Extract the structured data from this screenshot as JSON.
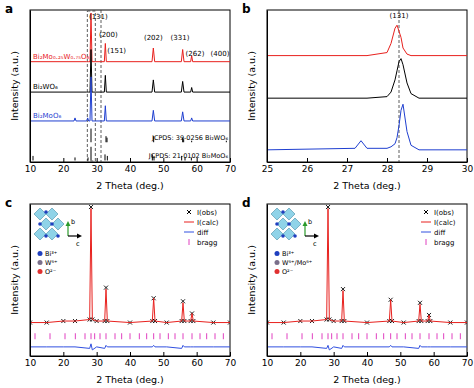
{
  "chart_data": [
    {
      "type": "line",
      "title": "a",
      "x_label": "2 Theta (deg.)",
      "y_label": "Intensity (a.u.)",
      "xlim": [
        10,
        70
      ],
      "xticks": [
        10,
        20,
        30,
        40,
        50,
        60,
        70
      ],
      "ylim": [
        0,
        100
      ],
      "tick_labels": "x",
      "highlight_x": [
        27.2,
        29.6
      ],
      "reference_lines": [
        31.3
      ],
      "x": [
        10,
        23.2,
        23.5,
        23.8,
        27.0,
        27.3,
        27.6,
        28.0,
        28.3,
        28.6,
        32.3,
        32.6,
        32.9,
        46.6,
        47.0,
        47.4,
        55.4,
        55.8,
        56.2,
        58.2,
        58.5,
        58.8,
        70
      ],
      "series": [
        {
          "name": "Bi₂Mo₀.₂₅W₀.₇₅O₆",
          "type": "line",
          "color": "#e8211e",
          "values": [
            66,
            66,
            66,
            66,
            66,
            66,
            66,
            66,
            98,
            66,
            66,
            78,
            66,
            66,
            75,
            66,
            66,
            74,
            66,
            66,
            70,
            66,
            66
          ]
        },
        {
          "name": "Bi₂WO₆",
          "type": "line",
          "color": "#000000",
          "values": [
            46,
            46,
            46,
            46,
            46,
            46,
            46,
            46,
            74,
            46,
            46,
            57,
            46,
            46,
            54,
            46,
            46,
            53,
            46,
            46,
            49,
            46,
            46
          ]
        },
        {
          "name": "Bi₂MoO₆",
          "type": "line",
          "color": "#1f3fd0",
          "values": [
            27,
            27,
            29,
            27,
            27,
            29,
            27,
            27,
            56,
            27,
            27,
            37,
            27,
            27,
            34,
            27,
            27,
            33,
            27,
            27,
            29,
            27,
            27
          ]
        },
        {
          "name": "JCPDS: 39-0256 Bi₂WO₆",
          "type": "sticks",
          "color": "#000000",
          "base": 13,
          "x": [
            28.3,
            32.8,
            33.1,
            47.1,
            55.8,
            56.1,
            58.5,
            68.9
          ],
          "values": [
            22,
            17,
            16,
            17,
            16,
            15,
            14,
            14
          ]
        },
        {
          "name": "JCPDS: 21-0102 Bi₂MoO₆",
          "type": "sticks",
          "color": "#000000",
          "base": 1,
          "x": [
            10.9,
            23.5,
            27.4,
            28.3,
            32.5,
            33.2,
            46.7,
            47.2,
            55.5,
            56.5,
            58.4
          ],
          "values": [
            4,
            3,
            3,
            10,
            5,
            4,
            5,
            4,
            4,
            3,
            3
          ]
        }
      ],
      "annotations": [
        {
          "text": "(131)",
          "x": 30.5,
          "y": 94
        },
        {
          "text": "(200)",
          "x": 33.5,
          "y": 82
        },
        {
          "text": "(151)",
          "x": 36,
          "y": 72
        },
        {
          "text": "(202)",
          "x": 47,
          "y": 80
        },
        {
          "text": "(331)",
          "x": 55,
          "y": 80
        },
        {
          "text": "(262)",
          "x": 59.5,
          "y": 70
        },
        {
          "text": "(400)",
          "x": 67,
          "y": 70
        }
      ]
    },
    {
      "type": "line",
      "title": "b",
      "x_label": "2 Theta (deg.)",
      "y_label": "Intensity (a.u.)",
      "xlim": [
        25,
        30
      ],
      "xticks": [
        25,
        26,
        27,
        28,
        29,
        30
      ],
      "ylim": [
        0,
        100
      ],
      "tick_labels": "x",
      "reference_lines": [
        28.3
      ],
      "x": [
        25,
        27.2,
        27.35,
        27.5,
        28.0,
        28.1,
        28.2,
        28.25,
        28.3,
        28.35,
        28.4,
        28.5,
        28.6,
        28.8,
        30
      ],
      "series": [
        {
          "type": "line",
          "color": "#e8211e",
          "values": [
            70,
            70,
            70,
            70,
            72,
            78,
            88,
            90,
            86,
            82,
            75,
            71,
            70,
            70,
            70
          ]
        },
        {
          "type": "line",
          "color": "#000000",
          "values": [
            42,
            42,
            42,
            42,
            43,
            46,
            54,
            60,
            66,
            68,
            64,
            52,
            45,
            42,
            42
          ]
        },
        {
          "type": "line",
          "color": "#1f3fd0",
          "values": [
            8,
            9,
            14,
            9,
            9,
            10,
            12,
            16,
            24,
            34,
            38,
            20,
            11,
            8,
            8
          ]
        }
      ],
      "annotations": [
        {
          "text": "(131)",
          "x": 28.3,
          "y": 95
        }
      ]
    },
    {
      "type": "line",
      "title": "c",
      "x_label": "2 Theta (deg.)",
      "y_label": "Intensity (a.u.)",
      "xlim": [
        10,
        70
      ],
      "xticks": [
        10,
        20,
        30,
        40,
        50,
        60,
        70
      ],
      "ylim": [
        0,
        100
      ],
      "tick_labels": "x",
      "legend": "top-right",
      "x": [
        10,
        15,
        20,
        23.5,
        27.9,
        28.3,
        28.7,
        30,
        32.4,
        32.8,
        33.2,
        40,
        46.7,
        47.1,
        47.5,
        51,
        55.5,
        55.9,
        56.3,
        58.2,
        58.6,
        59.0,
        65,
        70
      ],
      "series": [
        {
          "name": "I(obs)",
          "type": "scatter",
          "marker": "x",
          "color": "#000000",
          "values": [
            22,
            22,
            23,
            23,
            24,
            98,
            24,
            23,
            23,
            45,
            23,
            22,
            23,
            38,
            23,
            22,
            23,
            36,
            23,
            23,
            28,
            23,
            22,
            22
          ]
        },
        {
          "name": "I(calc)",
          "type": "line",
          "color": "#e8211e",
          "values": [
            22,
            22,
            23,
            23,
            24,
            97,
            24,
            23,
            23,
            44,
            23,
            22,
            23,
            38,
            23,
            22,
            23,
            35,
            23,
            23,
            28,
            23,
            22,
            22
          ]
        },
        {
          "name": "diff",
          "type": "line",
          "color": "#3050e0",
          "values": [
            6,
            6,
            6,
            6,
            5,
            8,
            4,
            6,
            5,
            7,
            6,
            6,
            6,
            7,
            6,
            6,
            5,
            7,
            6,
            6,
            6,
            6,
            6,
            6
          ]
        },
        {
          "name": "bragg",
          "type": "tick",
          "color": "#e040c0",
          "x": [
            11.5,
            16,
            20.5,
            23.6,
            26.5,
            28.3,
            29.4,
            31,
            32.8,
            35.5,
            37.5,
            40,
            42.8,
            45,
            47.1,
            49,
            51.5,
            53.5,
            55.9,
            58.6,
            61,
            63,
            65.5,
            68
          ],
          "values": [
            13,
            13,
            13,
            13,
            13,
            13,
            13,
            13,
            13,
            13,
            13,
            13,
            13,
            13,
            13,
            13,
            13,
            13,
            13,
            13,
            13,
            13,
            13,
            13
          ]
        }
      ],
      "inset_legend": [
        {
          "label": "Bi³⁺",
          "color": "#1f3fbf"
        },
        {
          "label": "W⁶⁺",
          "color": "#7a6f8a"
        },
        {
          "label": "O²⁻",
          "color": "#e03030"
        }
      ],
      "inset_axes": [
        "b",
        "c"
      ]
    },
    {
      "type": "line",
      "title": "d",
      "x_label": "2 Theta (deg.)",
      "y_label": "Intensity (a.u.)",
      "xlim": [
        10,
        70
      ],
      "xticks": [
        10,
        20,
        30,
        40,
        50,
        60,
        70
      ],
      "ylim": [
        0,
        100
      ],
      "tick_labels": "x",
      "legend": "top-right",
      "x": [
        10,
        15,
        20,
        23.5,
        27.9,
        28.3,
        28.7,
        30,
        32.4,
        32.8,
        33.2,
        40,
        46.7,
        47.1,
        47.5,
        51,
        55.5,
        55.9,
        56.3,
        58.2,
        58.6,
        59.0,
        65,
        70
      ],
      "series": [
        {
          "name": "I(obs)",
          "type": "scatter",
          "marker": "x",
          "color": "#000000",
          "values": [
            22,
            22,
            23,
            23,
            24,
            98,
            24,
            23,
            23,
            44,
            23,
            22,
            23,
            37,
            23,
            22,
            23,
            35,
            23,
            23,
            27,
            23,
            22,
            22
          ]
        },
        {
          "name": "I(calc)",
          "type": "line",
          "color": "#e8211e",
          "values": [
            22,
            22,
            23,
            23,
            24,
            97,
            24,
            23,
            23,
            43,
            23,
            22,
            23,
            37,
            23,
            22,
            23,
            34,
            23,
            23,
            27,
            23,
            22,
            22
          ]
        },
        {
          "name": "diff",
          "type": "line",
          "color": "#3050e0",
          "values": [
            6,
            6,
            6,
            6,
            5,
            7,
            4,
            6,
            5,
            7,
            6,
            6,
            6,
            7,
            6,
            6,
            5,
            7,
            6,
            6,
            6,
            6,
            6,
            6
          ]
        },
        {
          "name": "bragg",
          "type": "tick",
          "color": "#e040c0",
          "x": [
            11.5,
            16,
            20.5,
            23.6,
            26.5,
            28.3,
            29.4,
            31,
            32.8,
            35.5,
            37.5,
            40,
            42.8,
            45,
            47.1,
            49,
            51.5,
            53.5,
            55.9,
            58.6,
            61,
            63,
            65.5,
            68
          ],
          "values": [
            13,
            13,
            13,
            13,
            13,
            13,
            13,
            13,
            13,
            13,
            13,
            13,
            13,
            13,
            13,
            13,
            13,
            13,
            13,
            13,
            13,
            13,
            13,
            13
          ]
        }
      ],
      "inset_legend": [
        {
          "label": "Bi³⁺",
          "color": "#1f3fbf"
        },
        {
          "label": "W⁶⁺/Mo⁶⁺",
          "color": "#7a6f8a"
        },
        {
          "label": "O²⁻",
          "color": "#e03030"
        }
      ],
      "inset_axes": [
        "b",
        "c"
      ]
    }
  ]
}
